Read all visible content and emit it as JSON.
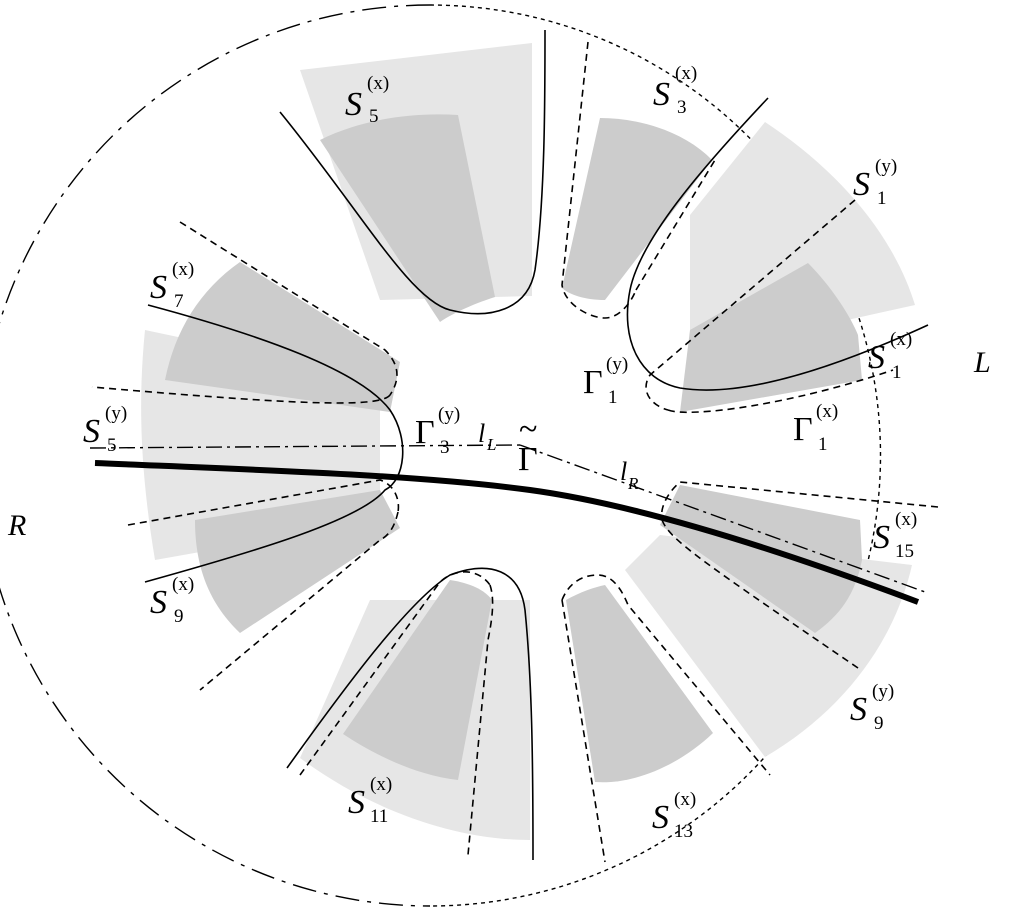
{
  "colors": {
    "light_sector": "#e6e6e6",
    "dark_sector": "#cccccc",
    "stroke": "#000000",
    "background": "#ffffff"
  },
  "edge_labels": {
    "L": "L",
    "R": "R"
  },
  "sector_labels": [
    {
      "id": "S5x",
      "main": "S",
      "sup": "(x)",
      "sub": "5"
    },
    {
      "id": "S3x",
      "main": "S",
      "sup": "(x)",
      "sub": "3"
    },
    {
      "id": "S1y",
      "main": "S",
      "sup": "(y)",
      "sub": "1"
    },
    {
      "id": "S1x",
      "main": "S",
      "sup": "(x)",
      "sub": "1"
    },
    {
      "id": "S7x",
      "main": "S",
      "sup": "(x)",
      "sub": "7"
    },
    {
      "id": "S5y",
      "main": "S",
      "sup": "(y)",
      "sub": "5"
    },
    {
      "id": "S9x",
      "main": "S",
      "sup": "(x)",
      "sub": "9"
    },
    {
      "id": "S15x",
      "main": "S",
      "sup": "(x)",
      "sub": "15"
    },
    {
      "id": "S9y",
      "main": "S",
      "sup": "(y)",
      "sub": "9"
    },
    {
      "id": "S11x",
      "main": "S",
      "sup": "(x)",
      "sub": "11"
    },
    {
      "id": "S13x",
      "main": "S",
      "sup": "(x)",
      "sub": "13"
    }
  ],
  "gamma_labels": [
    {
      "id": "G1y",
      "main": "Γ",
      "sup": "(y)",
      "sub": "1"
    },
    {
      "id": "G1x",
      "main": "Γ",
      "sup": "(x)",
      "sub": "1"
    },
    {
      "id": "G3y",
      "main": "Γ",
      "sup": "(y)",
      "sub": "3"
    }
  ],
  "gamma_tilde": {
    "main": "Γ",
    "accent": "~"
  },
  "line_labels": [
    {
      "id": "lL",
      "main": "l",
      "sub": "L"
    },
    {
      "id": "lR",
      "main": "l",
      "sub": "R"
    }
  ]
}
